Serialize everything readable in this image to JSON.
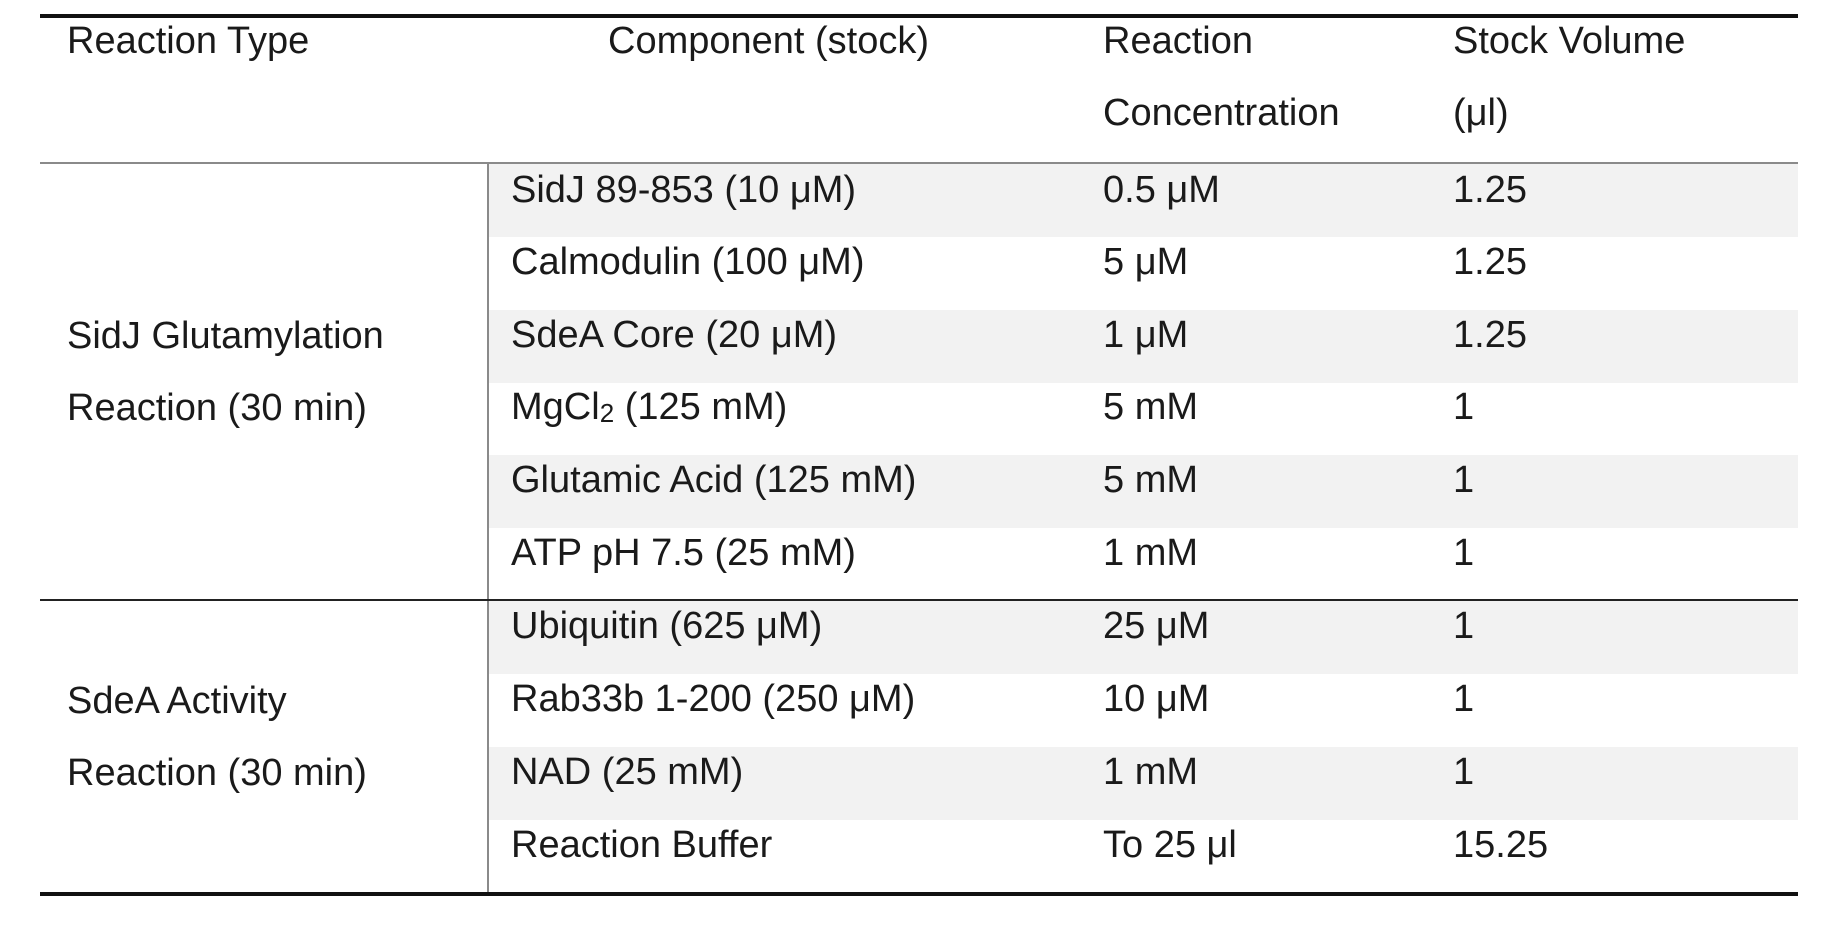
{
  "table": {
    "headers": {
      "reaction_type": "Reaction Type",
      "component": "Component (stock)",
      "concentration_line1": "Reaction",
      "concentration_line2": "Concentration",
      "volume_line1": "Stock Volume",
      "volume_line2": "(μl)"
    },
    "groups": [
      {
        "label_line1": "SidJ Glutamylation",
        "label_line2": "Reaction (30 min)",
        "rows": [
          {
            "component": "SidJ 89-853 (10 μM)",
            "concentration": "0.5 μM",
            "volume": "1.25"
          },
          {
            "component": "Calmodulin (100 μM)",
            "concentration": "5 μM",
            "volume": "1.25"
          },
          {
            "component": "SdeA Core (20 μM)",
            "concentration": "1 μM",
            "volume": "1.25"
          },
          {
            "component_prefix": "MgCl",
            "component_sub": "2",
            "component_suffix": " (125 mM)",
            "concentration": "5 mM",
            "volume": "1"
          },
          {
            "component": "Glutamic Acid (125 mM)",
            "concentration": "5 mM",
            "volume": "1"
          },
          {
            "component": "ATP pH 7.5 (25 mM)",
            "concentration": "1 mM",
            "volume": "1"
          }
        ]
      },
      {
        "label_line1": "SdeA Activity",
        "label_line2": "Reaction (30 min)",
        "rows": [
          {
            "component": "Ubiquitin (625 μM)",
            "concentration": "25 μM",
            "volume": "1"
          },
          {
            "component": "Rab33b 1-200 (250 μM)",
            "concentration": "10 μM",
            "volume": "1"
          },
          {
            "component": "NAD (25 mM)",
            "concentration": "1 mM",
            "volume": "1"
          },
          {
            "component": "Reaction Buffer",
            "concentration": "To 25 μl",
            "volume": "15.25"
          }
        ]
      }
    ]
  }
}
